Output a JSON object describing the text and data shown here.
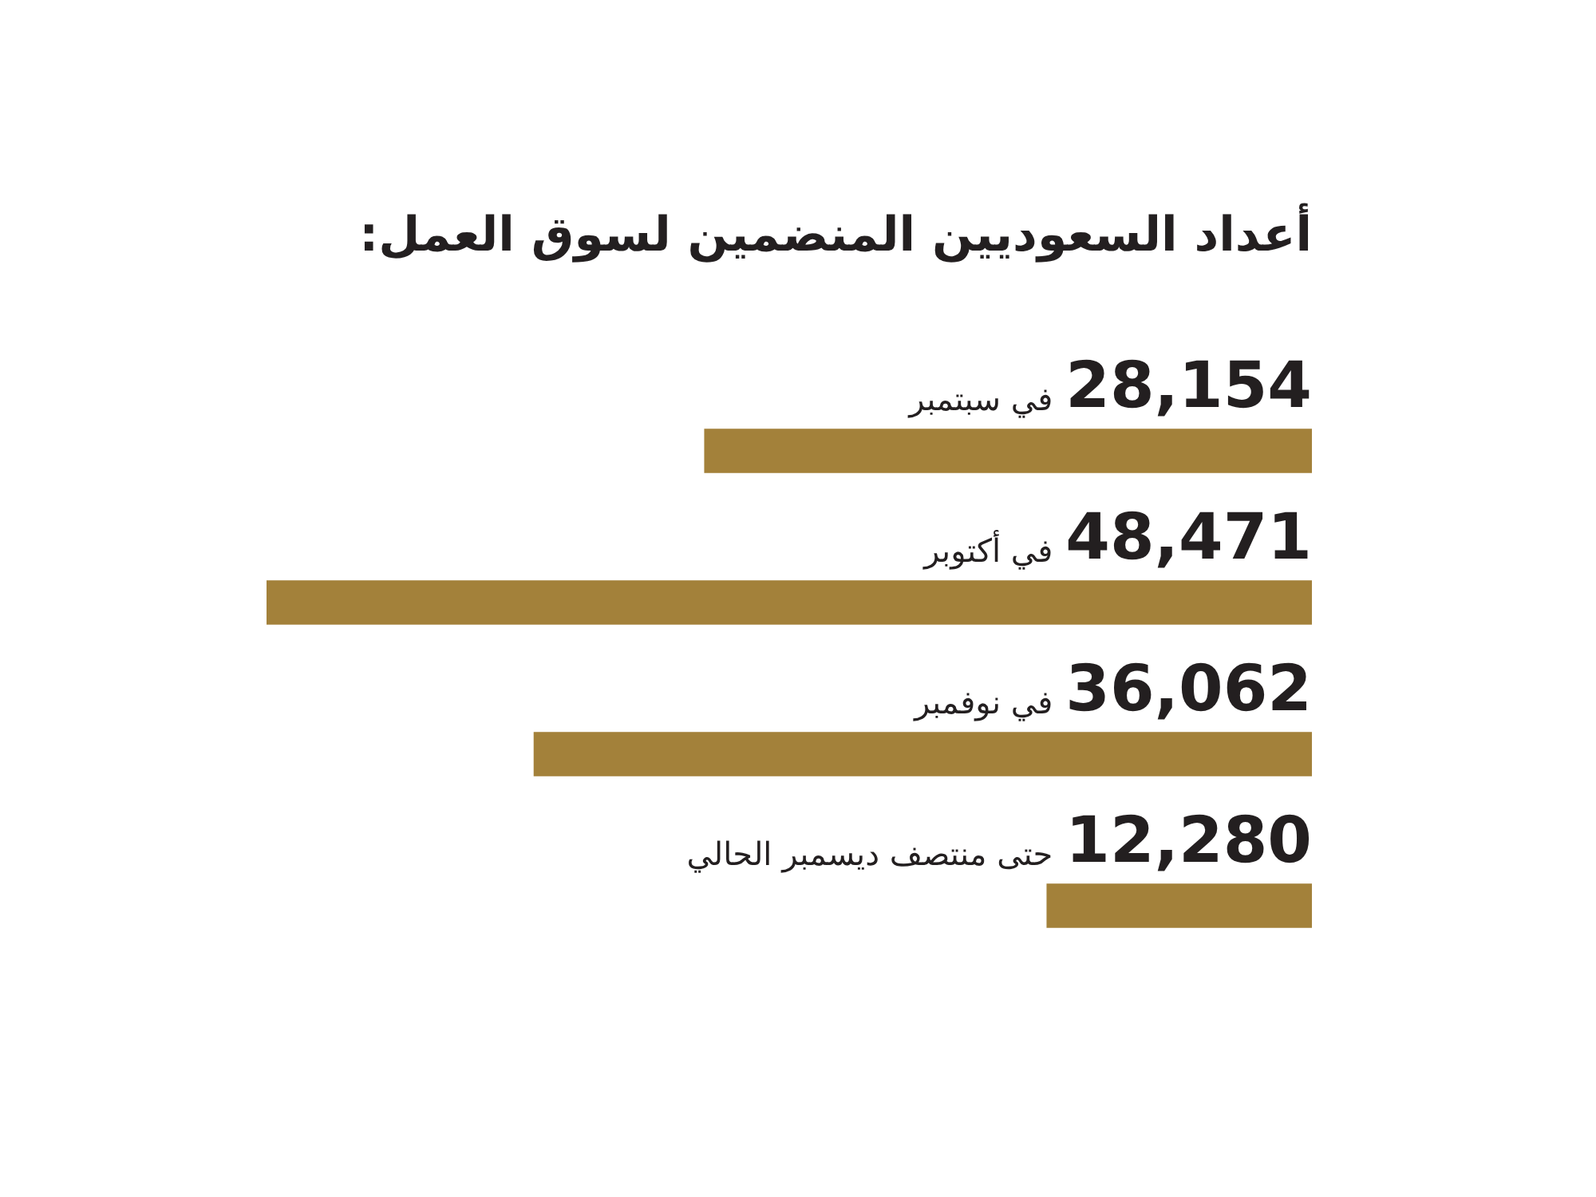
{
  "chart_data": {
    "type": "bar",
    "orientation": "horizontal",
    "title": "أعداد السعوديين المنضمين لسوق العمل:",
    "categories": [
      "في سبتمبر",
      "في أكتوبر",
      "في نوفمبر",
      "حتى منتصف ديسمبر الحالي"
    ],
    "values": [
      28154,
      48471,
      36062,
      12280
    ],
    "value_labels": [
      "28,154",
      "48,471",
      "36,062",
      "12,280"
    ],
    "color": "#a3813a",
    "xlim": [
      48471,
      0
    ],
    "tick_labels": "y"
  }
}
